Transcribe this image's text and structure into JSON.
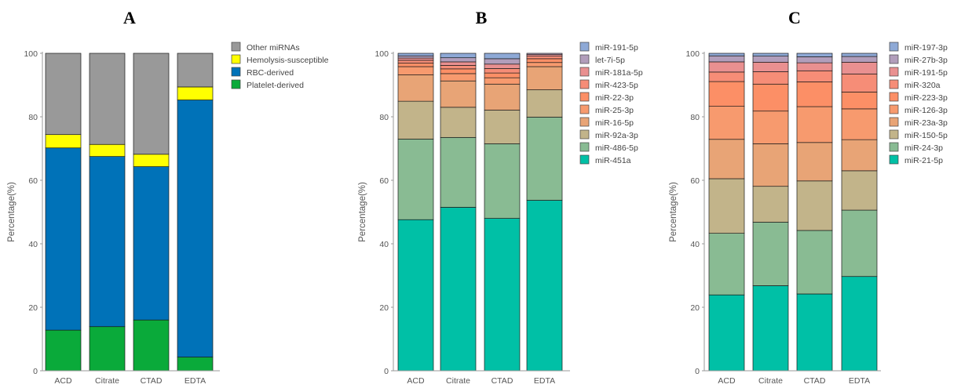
{
  "figure": {
    "panels": [
      "A",
      "B",
      "C"
    ]
  },
  "chart_data": [
    {
      "type": "bar",
      "stacked": true,
      "panel": "A",
      "ylabel": "Percentage(%)",
      "xlabel": "",
      "ylim": [
        0,
        100
      ],
      "yticks": [
        0,
        20,
        40,
        60,
        80,
        100
      ],
      "categories": [
        "ACD",
        "Citrate",
        "CTAD",
        "EDTA"
      ],
      "legend": [
        "Other miRNAs",
        "Hemolysis-susceptible",
        "RBC-derived",
        "Platelet-derived"
      ],
      "series": [
        {
          "name": "Platelet-derived",
          "color": "#0aaa3a",
          "values": [
            12.8,
            13.9,
            16.0,
            4.3
          ]
        },
        {
          "name": "RBC-derived",
          "color": "#0072b8",
          "values": [
            57.4,
            53.6,
            48.3,
            81.0
          ]
        },
        {
          "name": "Hemolysis-susceptible",
          "color": "#ffff00",
          "values": [
            4.2,
            3.8,
            3.9,
            4.1
          ]
        },
        {
          "name": "Other miRNAs",
          "color": "#999999",
          "values": [
            25.6,
            28.7,
            31.8,
            10.6
          ]
        }
      ]
    },
    {
      "type": "bar",
      "stacked": true,
      "panel": "B",
      "ylabel": "Percentage(%)",
      "xlabel": "",
      "ylim": [
        0,
        100
      ],
      "yticks": [
        0,
        20,
        40,
        60,
        80,
        100
      ],
      "categories": [
        "ACD",
        "Citrate",
        "CTAD",
        "EDTA"
      ],
      "legend": [
        "miR-191-5p",
        "let-7i-5p",
        "miR-181a-5p",
        "miR-423-5p",
        "miR-22-3p",
        "miR-25-3p",
        "miR-16-5p",
        "miR-92a-3p",
        "miR-486-5p",
        "miR-451a"
      ],
      "series": [
        {
          "name": "miR-451a",
          "color": "#00c0a6",
          "values": [
            47.6,
            51.5,
            48.0,
            53.7
          ]
        },
        {
          "name": "miR-486-5p",
          "color": "#89bb93",
          "values": [
            25.4,
            22.0,
            23.5,
            26.2
          ]
        },
        {
          "name": "miR-92a-3p",
          "color": "#c2b48a",
          "values": [
            11.9,
            9.5,
            10.6,
            8.6
          ]
        },
        {
          "name": "miR-16-5p",
          "color": "#e8a476",
          "values": [
            8.3,
            8.3,
            8.2,
            7.3
          ]
        },
        {
          "name": "miR-25-3p",
          "color": "#f79a6e",
          "values": [
            2.6,
            2.3,
            2.0,
            1.3
          ]
        },
        {
          "name": "miR-22-3p",
          "color": "#fc8f66",
          "values": [
            1.1,
            1.5,
            1.5,
            1.2
          ]
        },
        {
          "name": "miR-423-5p",
          "color": "#f68d77",
          "values": [
            0.9,
            1.1,
            1.4,
            0.8
          ]
        },
        {
          "name": "miR-181a-5p",
          "color": "#e99090",
          "values": [
            0.7,
            1.1,
            1.4,
            0.5
          ]
        },
        {
          "name": "let-7i-5p",
          "color": "#b29ebb",
          "values": [
            0.7,
            1.3,
            1.7,
            0.4
          ]
        },
        {
          "name": "miR-191-5p",
          "color": "#8ea9d6",
          "values": [
            0.8,
            1.4,
            1.7,
            0.0
          ]
        }
      ]
    },
    {
      "type": "bar",
      "stacked": true,
      "panel": "C",
      "ylabel": "Percentage(%)",
      "xlabel": "",
      "ylim": [
        0,
        100
      ],
      "yticks": [
        0,
        20,
        40,
        60,
        80,
        100
      ],
      "categories": [
        "ACD",
        "Citrate",
        "CTAD",
        "EDTA"
      ],
      "legend": [
        "miR-197-3p",
        "miR-27b-3p",
        "miR-191-5p",
        "miR-320a",
        "miR-223-3p",
        "miR-126-3p",
        "miR-23a-3p",
        "miR-150-5p",
        "miR-24-3p",
        "miR-21-5p"
      ],
      "series": [
        {
          "name": "miR-21-5p",
          "color": "#00c0a6",
          "values": [
            23.9,
            26.8,
            24.2,
            29.7
          ]
        },
        {
          "name": "miR-24-3p",
          "color": "#89bb93",
          "values": [
            19.4,
            20.0,
            20.0,
            20.9
          ]
        },
        {
          "name": "miR-150-5p",
          "color": "#c2b48a",
          "values": [
            17.2,
            11.3,
            15.6,
            12.4
          ]
        },
        {
          "name": "miR-23a-3p",
          "color": "#e8a476",
          "values": [
            12.4,
            13.4,
            12.1,
            9.8
          ]
        },
        {
          "name": "miR-126-3p",
          "color": "#f79a6e",
          "values": [
            10.4,
            10.3,
            11.3,
            9.7
          ]
        },
        {
          "name": "miR-223-3p",
          "color": "#fc8f66",
          "values": [
            7.8,
            8.5,
            7.8,
            5.3
          ]
        },
        {
          "name": "miR-320a",
          "color": "#f68d77",
          "values": [
            3.0,
            3.9,
            3.5,
            5.7
          ]
        },
        {
          "name": "miR-191-5p",
          "color": "#e99090",
          "values": [
            3.2,
            3.0,
            2.5,
            3.7
          ]
        },
        {
          "name": "miR-27b-3p",
          "color": "#b29ebb",
          "values": [
            1.9,
            1.9,
            1.9,
            1.8
          ]
        },
        {
          "name": "miR-197-3p",
          "color": "#8ea9d6",
          "values": [
            0.8,
            0.9,
            1.1,
            1.0
          ]
        }
      ]
    }
  ]
}
